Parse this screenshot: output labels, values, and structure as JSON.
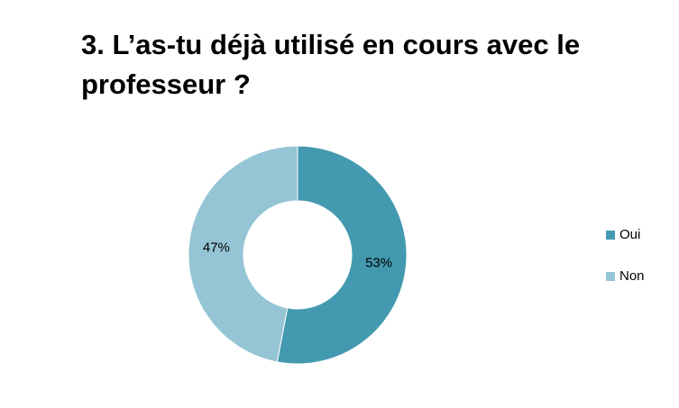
{
  "title": "3. L’as-tu déjà utilisé en cours avec le professeur ?",
  "chart_data": {
    "type": "pie",
    "donut": true,
    "title": "3. L’as-tu déjà utilisé en cours avec le professeur ?",
    "categories": [
      "Oui",
      "Non"
    ],
    "values": [
      53,
      47
    ],
    "labels": [
      "53%",
      "47%"
    ],
    "colors": [
      "#4399B0",
      "#95C5D5"
    ],
    "legend_position": "right"
  }
}
